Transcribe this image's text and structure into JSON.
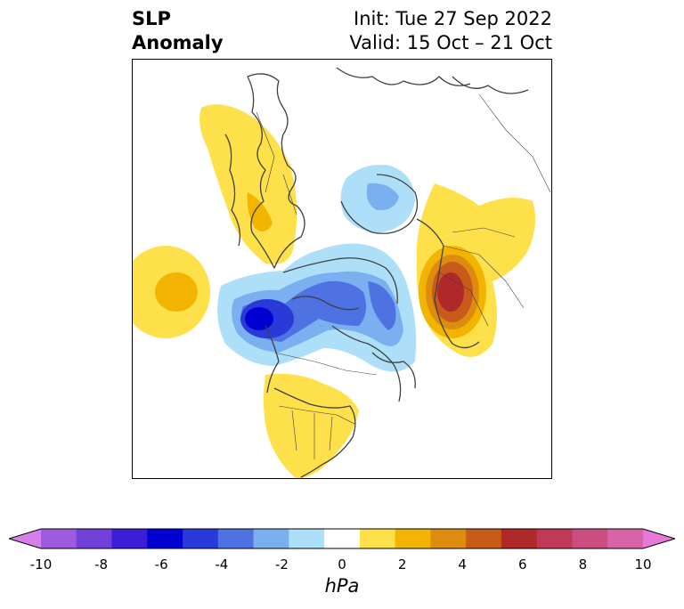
{
  "header": {
    "title_line1": "SLP",
    "title_line2": "Anomaly",
    "init_text": "Init: Tue 27 Sep 2022",
    "valid_text": "Valid: 15 Oct – 21 Oct"
  },
  "colorbar": {
    "label": "hPa",
    "ticks": [
      "-10",
      "-8",
      "-6",
      "-4",
      "-2",
      "0",
      "2",
      "4",
      "6",
      "8",
      "10"
    ],
    "colors": [
      "#d87ee8",
      "#a05ae0",
      "#7040d8",
      "#3c1ed8",
      "#0000d2",
      "#2a3ad8",
      "#4e72e2",
      "#7ab0f0",
      "#ade0f8",
      "#ffffff",
      "#fde04a",
      "#f2b400",
      "#de8c10",
      "#c85a1a",
      "#b02828",
      "#c03a58",
      "#cc4e80",
      "#d864a8",
      "#e878d8"
    ]
  },
  "map": {
    "projection": "polar-stereographic",
    "feature_colors": {
      "land_outline": "#404040",
      "border": "#404040"
    }
  }
}
